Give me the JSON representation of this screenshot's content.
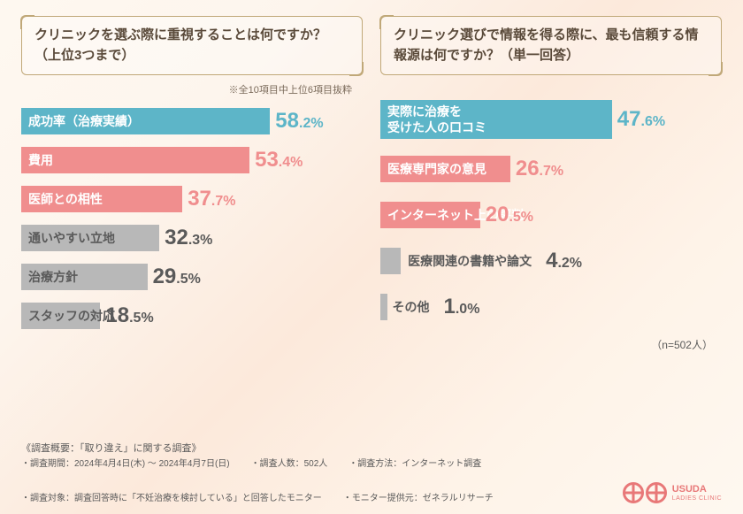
{
  "left": {
    "question": "クリニックを選ぶ際に重視することは何ですか？（上位3つまで）",
    "subtitle": "※全10項目中上位6項目抜粋",
    "max_value": 60,
    "bars": [
      {
        "label": "成功率（治療実績）",
        "value": 58.2,
        "big": "58",
        "small": ".2%",
        "color": "#5db5c8",
        "text_color": "#5db5c8",
        "dark": false
      },
      {
        "label": "費用",
        "value": 53.4,
        "big": "53",
        "small": ".4%",
        "color": "#f08e8e",
        "text_color": "#f08e8e",
        "dark": false
      },
      {
        "label": "医師との相性",
        "value": 37.7,
        "big": "37",
        "small": ".7%",
        "color": "#f08e8e",
        "text_color": "#f08e8e",
        "dark": false
      },
      {
        "label": "通いやすい立地",
        "value": 32.3,
        "big": "32",
        "small": ".3%",
        "color": "#b8b8b8",
        "text_color": "#5a5a5a",
        "dark": true
      },
      {
        "label": "治療方針",
        "value": 29.5,
        "big": "29",
        "small": ".5%",
        "color": "#b8b8b8",
        "text_color": "#5a5a5a",
        "dark": true
      },
      {
        "label": "スタッフの対応",
        "value": 18.5,
        "big": "18",
        "small": ".5%",
        "color": "#b8b8b8",
        "text_color": "#5a5a5a",
        "dark": true
      }
    ]
  },
  "right": {
    "question": "クリニック選びで情報を得る際に、最も信頼する情報源は何ですか？（単一回答）",
    "max_value": 60,
    "bars": [
      {
        "label": "実際に治療を\n受けた人の口コミ",
        "value": 47.6,
        "big": "47",
        "small": ".6%",
        "color": "#5db5c8",
        "text_color": "#5db5c8",
        "dark": false,
        "tall": true
      },
      {
        "label": "医療専門家の意見",
        "value": 26.7,
        "big": "26",
        "small": ".7%",
        "color": "#f08e8e",
        "text_color": "#f08e8e",
        "dark": false
      },
      {
        "label": "インターネット上の評判",
        "value": 20.5,
        "big": "20",
        "small": ".5%",
        "color": "#f08e8e",
        "text_color": "#f08e8e",
        "dark": false
      },
      {
        "label": "医療関連の書籍や論文",
        "value": 4.2,
        "big": "4",
        "small": ".2%",
        "color": "#b8b8b8",
        "text_color": "#5a5a5a",
        "dark": true,
        "outside": true
      },
      {
        "label": "その他",
        "value": 1.0,
        "big": "1",
        "small": ".0%",
        "color": "#b8b8b8",
        "text_color": "#5a5a5a",
        "dark": true,
        "outside": true
      }
    ],
    "n_label": "（n=502人）"
  },
  "footer": {
    "title": "《調査概要：「取り違え」に関する調査》",
    "items": [
      "・調査期間：2024年4月4日(木) ～ 2024年4月7日(日)",
      "・調査人数：502人",
      "・調査方法：インターネット調査",
      "・調査対象：調査回答時に「不妊治療を検討している」と回答したモニター",
      "・モニター提供元：ゼネラルリサーチ"
    ]
  },
  "logo": {
    "name": "USUDA",
    "sub": "LADIES CLINIC"
  }
}
